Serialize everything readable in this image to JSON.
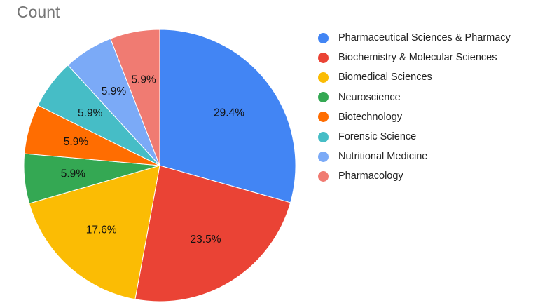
{
  "chart_data": {
    "type": "pie",
    "title": "Count",
    "legend_position": "right",
    "slices": [
      {
        "label": "Pharmaceutical Sciences & Pharmacy",
        "value": 29.4,
        "display": "29.4%",
        "color": "#4285F4"
      },
      {
        "label": "Biochemistry & Molecular Sciences",
        "value": 23.5,
        "display": "23.5%",
        "color": "#EA4335"
      },
      {
        "label": "Biomedical Sciences",
        "value": 17.6,
        "display": "17.6%",
        "color": "#FBBC04"
      },
      {
        "label": "Neuroscience",
        "value": 5.9,
        "display": "5.9%",
        "color": "#34A853"
      },
      {
        "label": "Biotechnology",
        "value": 5.9,
        "display": "5.9%",
        "color": "#FF6D01"
      },
      {
        "label": "Forensic Science",
        "value": 5.9,
        "display": "5.9%",
        "color": "#46BDC6"
      },
      {
        "label": "Nutritional Medicine",
        "value": 5.9,
        "display": "5.9%",
        "color": "#7BAAF7"
      },
      {
        "label": "Pharmacology",
        "value": 5.9,
        "display": "5.9%",
        "color": "#F07B72"
      }
    ]
  }
}
